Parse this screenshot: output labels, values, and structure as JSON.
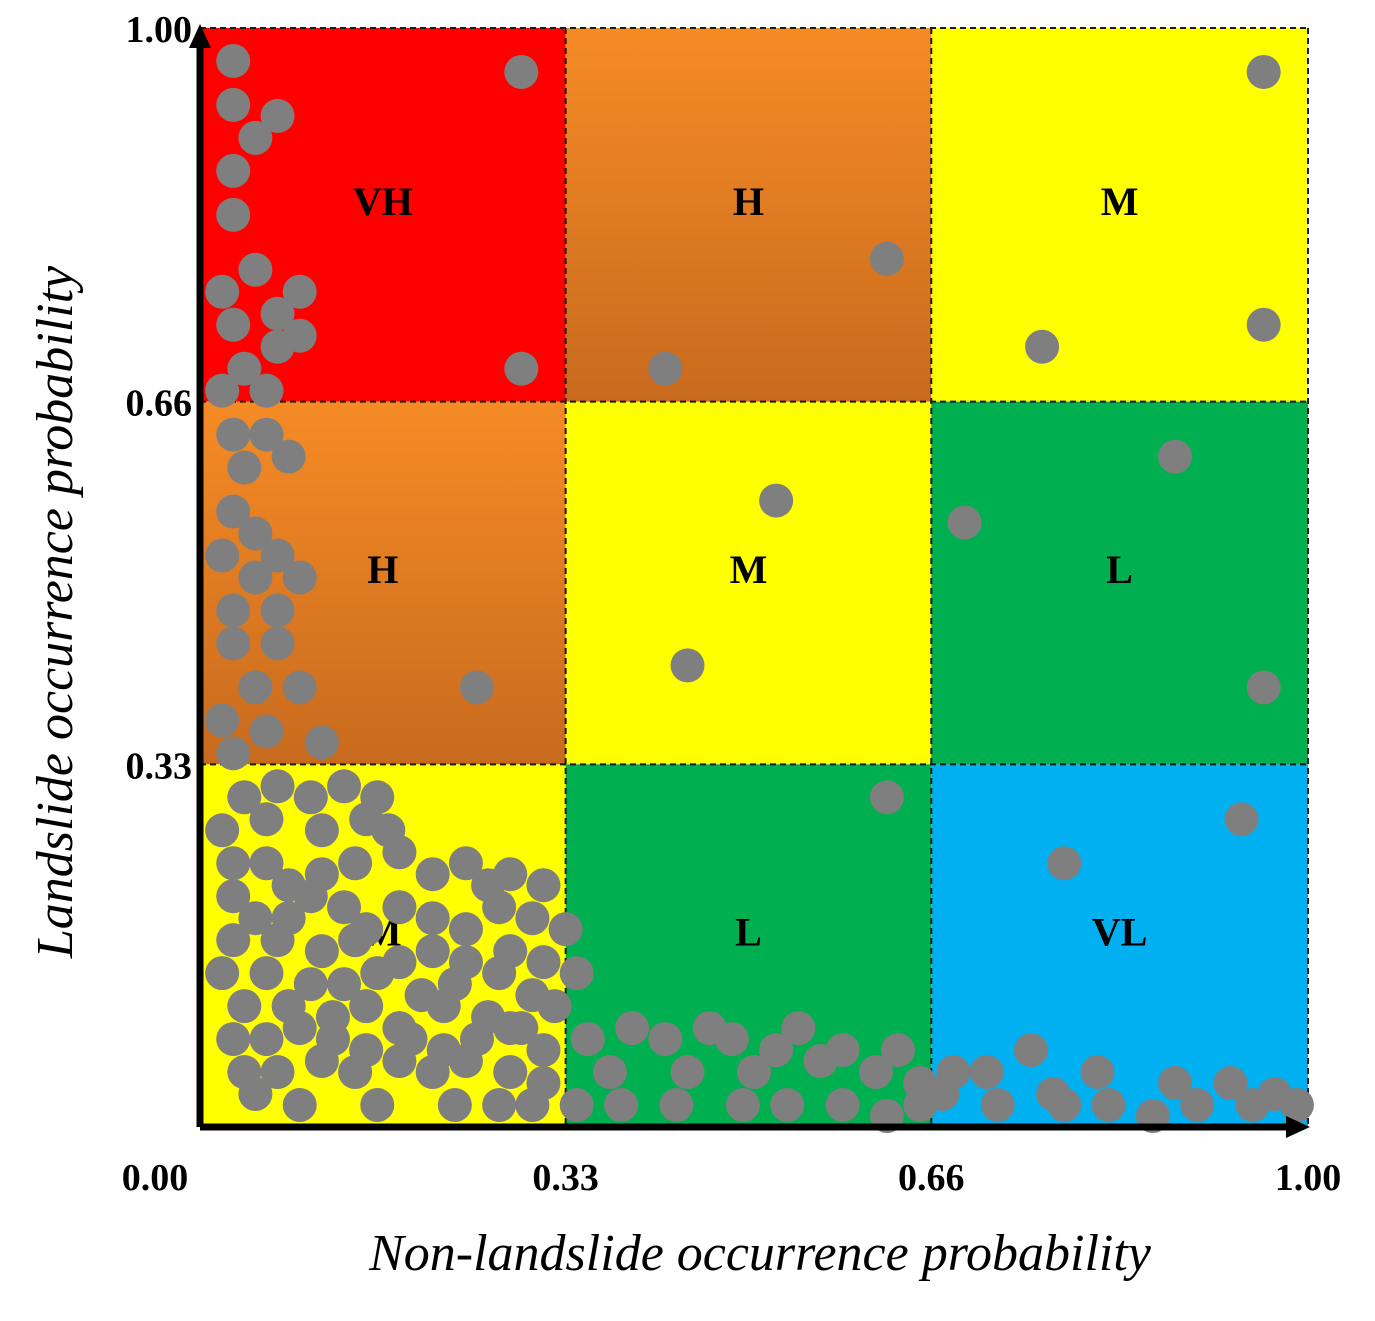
{
  "chart_data": {
    "type": "scatter",
    "title": "",
    "xlabel": "Non-landslide occurrence probability",
    "ylabel": "Landslide occurrence probability",
    "xlim": [
      0,
      1
    ],
    "ylim": [
      0,
      1
    ],
    "x_ticks": [
      {
        "value": 0,
        "label": "0.00"
      },
      {
        "value": 0.33,
        "label": "0.33"
      },
      {
        "value": 0.66,
        "label": "0.66"
      },
      {
        "value": 1,
        "label": "1.00"
      }
    ],
    "y_ticks": [
      {
        "value": 0.33,
        "label": "0.33"
      },
      {
        "value": 0.66,
        "label": "0.66"
      },
      {
        "value": 1,
        "label": "1.00"
      }
    ],
    "zones": [
      {
        "label": "VH",
        "x": [
          0,
          0.33
        ],
        "y": [
          0.66,
          1
        ],
        "color": "#ff0000",
        "gradient": false
      },
      {
        "label": "H",
        "x": [
          0.33,
          0.66
        ],
        "y": [
          0.66,
          1
        ],
        "color": "#f68b25",
        "color_end": "#c86a1e",
        "gradient": true
      },
      {
        "label": "M",
        "x": [
          0.66,
          1
        ],
        "y": [
          0.66,
          1
        ],
        "color": "#ffff00",
        "gradient": false
      },
      {
        "label": "H",
        "x": [
          0,
          0.33
        ],
        "y": [
          0.33,
          0.66
        ],
        "color": "#f68b25",
        "color_end": "#c86a1e",
        "gradient": true
      },
      {
        "label": "M",
        "x": [
          0.33,
          0.66
        ],
        "y": [
          0.33,
          0.66
        ],
        "color": "#ffff00",
        "gradient": false
      },
      {
        "label": "L",
        "x": [
          0.66,
          1
        ],
        "y": [
          0.33,
          0.66
        ],
        "color": "#00b050",
        "gradient": false
      },
      {
        "label": "M",
        "x": [
          0,
          0.33
        ],
        "y": [
          0,
          0.33
        ],
        "color": "#ffff00",
        "gradient": false
      },
      {
        "label": "L",
        "x": [
          0.33,
          0.66
        ],
        "y": [
          0,
          0.33
        ],
        "color": "#00b050",
        "gradient": false
      },
      {
        "label": "VL",
        "x": [
          0.66,
          1
        ],
        "y": [
          0,
          0.33
        ],
        "color": "#00b0f0",
        "gradient": false
      }
    ],
    "marker_color": "#7f7f7f",
    "points": [
      [
        0.03,
        0.97
      ],
      [
        0.03,
        0.93
      ],
      [
        0.07,
        0.92
      ],
      [
        0.05,
        0.9
      ],
      [
        0.03,
        0.87
      ],
      [
        0.03,
        0.83
      ],
      [
        0.05,
        0.78
      ],
      [
        0.02,
        0.76
      ],
      [
        0.09,
        0.76
      ],
      [
        0.07,
        0.74
      ],
      [
        0.03,
        0.73
      ],
      [
        0.09,
        0.72
      ],
      [
        0.07,
        0.71
      ],
      [
        0.04,
        0.69
      ],
      [
        0.02,
        0.67
      ],
      [
        0.06,
        0.67
      ],
      [
        0.29,
        0.96
      ],
      [
        0.29,
        0.69
      ],
      [
        0.62,
        0.79
      ],
      [
        0.42,
        0.69
      ],
      [
        0.76,
        0.71
      ],
      [
        0.96,
        0.96
      ],
      [
        0.96,
        0.73
      ],
      [
        0.03,
        0.63
      ],
      [
        0.06,
        0.63
      ],
      [
        0.08,
        0.61
      ],
      [
        0.04,
        0.6
      ],
      [
        0.03,
        0.56
      ],
      [
        0.05,
        0.54
      ],
      [
        0.02,
        0.52
      ],
      [
        0.07,
        0.52
      ],
      [
        0.05,
        0.5
      ],
      [
        0.09,
        0.5
      ],
      [
        0.03,
        0.47
      ],
      [
        0.07,
        0.47
      ],
      [
        0.03,
        0.44
      ],
      [
        0.07,
        0.44
      ],
      [
        0.05,
        0.4
      ],
      [
        0.09,
        0.4
      ],
      [
        0.02,
        0.37
      ],
      [
        0.06,
        0.36
      ],
      [
        0.11,
        0.35
      ],
      [
        0.03,
        0.34
      ],
      [
        0.25,
        0.4
      ],
      [
        0.52,
        0.57
      ],
      [
        0.44,
        0.42
      ],
      [
        0.69,
        0.55
      ],
      [
        0.88,
        0.61
      ],
      [
        0.96,
        0.4
      ],
      [
        0.04,
        0.3
      ],
      [
        0.07,
        0.31
      ],
      [
        0.1,
        0.3
      ],
      [
        0.13,
        0.31
      ],
      [
        0.16,
        0.3
      ],
      [
        0.02,
        0.27
      ],
      [
        0.06,
        0.28
      ],
      [
        0.11,
        0.27
      ],
      [
        0.15,
        0.28
      ],
      [
        0.17,
        0.27
      ],
      [
        0.03,
        0.24
      ],
      [
        0.06,
        0.24
      ],
      [
        0.08,
        0.22
      ],
      [
        0.11,
        0.23
      ],
      [
        0.14,
        0.24
      ],
      [
        0.18,
        0.25
      ],
      [
        0.21,
        0.23
      ],
      [
        0.24,
        0.24
      ],
      [
        0.26,
        0.22
      ],
      [
        0.28,
        0.23
      ],
      [
        0.31,
        0.22
      ],
      [
        0.03,
        0.21
      ],
      [
        0.05,
        0.19
      ],
      [
        0.08,
        0.19
      ],
      [
        0.1,
        0.21
      ],
      [
        0.13,
        0.2
      ],
      [
        0.15,
        0.18
      ],
      [
        0.18,
        0.2
      ],
      [
        0.21,
        0.19
      ],
      [
        0.24,
        0.18
      ],
      [
        0.27,
        0.2
      ],
      [
        0.3,
        0.19
      ],
      [
        0.33,
        0.18
      ],
      [
        0.03,
        0.17
      ],
      [
        0.07,
        0.17
      ],
      [
        0.11,
        0.16
      ],
      [
        0.14,
        0.17
      ],
      [
        0.18,
        0.15
      ],
      [
        0.21,
        0.16
      ],
      [
        0.24,
        0.15
      ],
      [
        0.28,
        0.16
      ],
      [
        0.31,
        0.15
      ],
      [
        0.02,
        0.14
      ],
      [
        0.06,
        0.14
      ],
      [
        0.1,
        0.13
      ],
      [
        0.13,
        0.13
      ],
      [
        0.16,
        0.14
      ],
      [
        0.2,
        0.12
      ],
      [
        0.23,
        0.13
      ],
      [
        0.27,
        0.14
      ],
      [
        0.3,
        0.12
      ],
      [
        0.34,
        0.14
      ],
      [
        0.04,
        0.11
      ],
      [
        0.08,
        0.11
      ],
      [
        0.12,
        0.1
      ],
      [
        0.15,
        0.11
      ],
      [
        0.18,
        0.09
      ],
      [
        0.22,
        0.11
      ],
      [
        0.26,
        0.1
      ],
      [
        0.29,
        0.09
      ],
      [
        0.32,
        0.11
      ],
      [
        0.03,
        0.08
      ],
      [
        0.06,
        0.08
      ],
      [
        0.09,
        0.09
      ],
      [
        0.12,
        0.08
      ],
      [
        0.15,
        0.07
      ],
      [
        0.19,
        0.08
      ],
      [
        0.22,
        0.07
      ],
      [
        0.25,
        0.08
      ],
      [
        0.28,
        0.09
      ],
      [
        0.31,
        0.07
      ],
      [
        0.04,
        0.05
      ],
      [
        0.07,
        0.05
      ],
      [
        0.11,
        0.06
      ],
      [
        0.14,
        0.05
      ],
      [
        0.18,
        0.06
      ],
      [
        0.21,
        0.05
      ],
      [
        0.24,
        0.06
      ],
      [
        0.28,
        0.05
      ],
      [
        0.31,
        0.04
      ],
      [
        0.05,
        0.03
      ],
      [
        0.09,
        0.02
      ],
      [
        0.16,
        0.02
      ],
      [
        0.23,
        0.02
      ],
      [
        0.27,
        0.02
      ],
      [
        0.3,
        0.02
      ],
      [
        0.62,
        0.3
      ],
      [
        0.35,
        0.08
      ],
      [
        0.37,
        0.05
      ],
      [
        0.39,
        0.09
      ],
      [
        0.42,
        0.08
      ],
      [
        0.44,
        0.05
      ],
      [
        0.46,
        0.09
      ],
      [
        0.48,
        0.08
      ],
      [
        0.5,
        0.05
      ],
      [
        0.52,
        0.07
      ],
      [
        0.54,
        0.09
      ],
      [
        0.56,
        0.06
      ],
      [
        0.58,
        0.07
      ],
      [
        0.61,
        0.05
      ],
      [
        0.63,
        0.07
      ],
      [
        0.65,
        0.04
      ],
      [
        0.34,
        0.02
      ],
      [
        0.38,
        0.02
      ],
      [
        0.43,
        0.02
      ],
      [
        0.49,
        0.02
      ],
      [
        0.53,
        0.02
      ],
      [
        0.58,
        0.02
      ],
      [
        0.62,
        0.01
      ],
      [
        0.65,
        0.02
      ],
      [
        0.78,
        0.24
      ],
      [
        0.94,
        0.28
      ],
      [
        0.68,
        0.05
      ],
      [
        0.71,
        0.05
      ],
      [
        0.75,
        0.07
      ],
      [
        0.77,
        0.03
      ],
      [
        0.81,
        0.05
      ],
      [
        0.88,
        0.04
      ],
      [
        0.93,
        0.04
      ],
      [
        0.97,
        0.03
      ],
      [
        0.99,
        0.02
      ],
      [
        0.67,
        0.03
      ],
      [
        0.72,
        0.02
      ],
      [
        0.78,
        0.02
      ],
      [
        0.82,
        0.02
      ],
      [
        0.86,
        0.01
      ],
      [
        0.9,
        0.02
      ],
      [
        0.95,
        0.02
      ]
    ]
  }
}
